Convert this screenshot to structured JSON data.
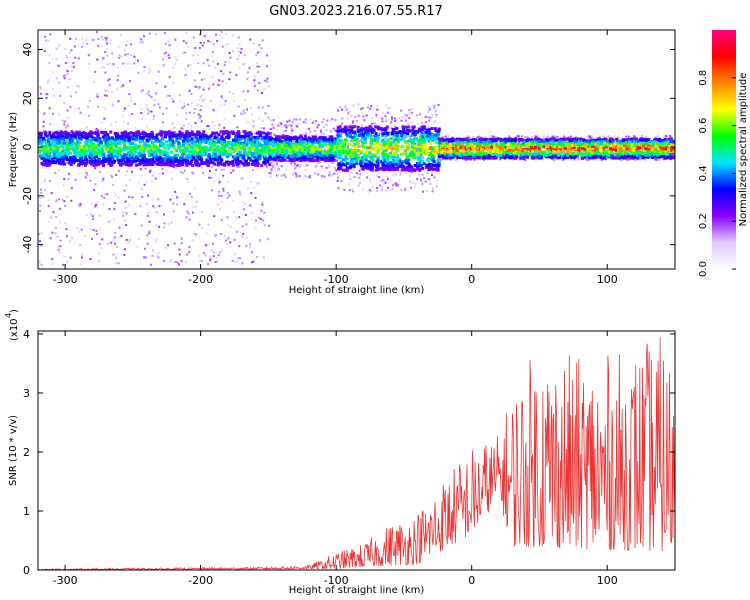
{
  "title": "GN03.2023.216.07.55.R17",
  "chart_data": [
    {
      "type": "heatmap",
      "xlabel": "Height of straight line (km)",
      "ylabel": "Frequency (Hz)",
      "xlim": [
        -320,
        150
      ],
      "ylim": [
        -50,
        48
      ],
      "x_ticks": [
        -300,
        -200,
        -100,
        0,
        100
      ],
      "y_ticks": [
        -40,
        -20,
        0,
        20,
        40
      ],
      "grid": false,
      "colorbar": {
        "label": "Normalized spectral amplitude",
        "range": [
          0.0,
          1.0
        ],
        "ticks": [
          "0.0",
          "0.2",
          "0.4",
          "0.6",
          "0.8"
        ],
        "colors": [
          "#ffffff",
          "#e0c8ff",
          "#8a00ff",
          "#0000ff",
          "#00e5ff",
          "#00ff00",
          "#ffff00",
          "#ff8800",
          "#ff0000",
          "#ff0080"
        ]
      },
      "band": {
        "center_hz": 0,
        "segments": [
          {
            "x_from": -320,
            "x_to": -150,
            "half_width_hz": 7,
            "scatter_hz": 48,
            "peak_amplitude": 0.45
          },
          {
            "x_from": -150,
            "x_to": -100,
            "half_width_hz": 5,
            "scatter_hz": 12,
            "peak_amplitude": 0.55
          },
          {
            "x_from": -100,
            "x_to": -25,
            "half_width_hz": 9,
            "scatter_hz": 18,
            "peak_amplitude": 0.6
          },
          {
            "x_from": -25,
            "x_to": 150,
            "half_width_hz": 4,
            "scatter_hz": 5,
            "peak_amplitude": 0.85
          }
        ]
      }
    },
    {
      "type": "line",
      "xlabel": "Height of straight line (km)",
      "ylabel": "SNR (10 * v/v)",
      "y_multiplier": "(x10",
      "y_exponent": "4",
      "xlim": [
        -320,
        150
      ],
      "ylim": [
        0,
        4.05
      ],
      "x_ticks": [
        -300,
        -200,
        -100,
        0,
        100
      ],
      "y_ticks": [
        0,
        1,
        2,
        3,
        4
      ],
      "grid": false,
      "series_color": "#ee3333",
      "series": [
        {
          "envelope": [
            {
              "x": -320,
              "y": 0.02
            },
            {
              "x": -200,
              "y": 0.04
            },
            {
              "x": -150,
              "y": 0.05
            },
            {
              "x": -120,
              "y": 0.08
            },
            {
              "x": -100,
              "y": 0.3
            },
            {
              "x": -80,
              "y": 0.45
            },
            {
              "x": -60,
              "y": 0.8
            },
            {
              "x": -40,
              "y": 1.0
            },
            {
              "x": -20,
              "y": 1.6
            },
            {
              "x": 0,
              "y": 2.1
            },
            {
              "x": 20,
              "y": 2.3
            },
            {
              "x": 30,
              "y": 3.1
            },
            {
              "x": 50,
              "y": 3.9
            },
            {
              "x": 80,
              "y": 3.6
            },
            {
              "x": 110,
              "y": 3.7
            },
            {
              "x": 140,
              "y": 4.0
            },
            {
              "x": 150,
              "y": 3.5
            }
          ],
          "baseline": [
            {
              "x": -320,
              "y": 0.0
            },
            {
              "x": -100,
              "y": 0.02
            },
            {
              "x": -40,
              "y": 0.1
            },
            {
              "x": 0,
              "y": 0.6
            },
            {
              "x": 20,
              "y": 1.2
            },
            {
              "x": 30,
              "y": 0.4
            },
            {
              "x": 150,
              "y": 0.3
            }
          ]
        }
      ]
    }
  ]
}
